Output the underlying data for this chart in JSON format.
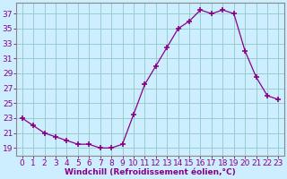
{
  "x": [
    0,
    1,
    2,
    3,
    4,
    5,
    6,
    7,
    8,
    9,
    10,
    11,
    12,
    13,
    14,
    15,
    16,
    17,
    18,
    19,
    20,
    21,
    22,
    23
  ],
  "y": [
    23,
    22,
    21,
    20.5,
    20,
    19.5,
    19.5,
    19,
    19,
    19.5,
    23.5,
    27.5,
    30,
    32.5,
    35,
    36,
    37.5,
    37,
    37.5,
    37,
    32,
    28.5,
    26,
    25.5
  ],
  "line_color": "#880088",
  "marker": "+",
  "marker_size": 4,
  "bg_color": "#cceeff",
  "grid_color": "#99cccc",
  "xlabel": "Windchill (Refroidissement éolien,°C)",
  "xlabel_color": "#880088",
  "xlabel_fontsize": 6.5,
  "yticks": [
    19,
    21,
    23,
    25,
    27,
    29,
    31,
    33,
    35,
    37
  ],
  "ylim": [
    18.0,
    38.5
  ],
  "xlim": [
    -0.5,
    23.5
  ],
  "tick_fontsize": 6.5,
  "tick_color": "#880088",
  "axis_color": "#888888"
}
